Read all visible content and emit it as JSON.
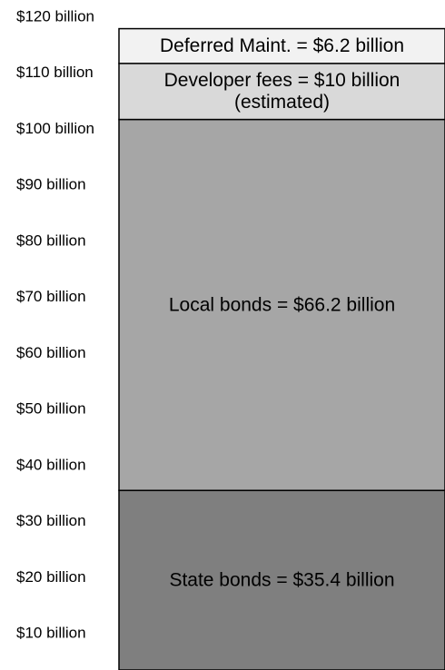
{
  "chart_data": {
    "type": "bar",
    "stacked": true,
    "ylim": [
      0,
      120
    ],
    "grid": false,
    "legend": "none",
    "tick_labels": [
      "$120 billion",
      "$110 billion",
      "$100 billion",
      "$90 billion",
      "$80 billion",
      "$70 billion",
      "$60 billion",
      "$50 billion",
      "$40 billion",
      "$30 billion",
      "$20 billion",
      "$10 billion"
    ],
    "tick_values": [
      120,
      110,
      100,
      90,
      80,
      70,
      60,
      50,
      40,
      30,
      20,
      10
    ],
    "segments": [
      {
        "value": 35.4,
        "lines": [
          "State bonds = $35.4 billion"
        ],
        "color": "#7f7f7f"
      },
      {
        "value": 66.2,
        "lines": [
          "Local bonds = $66.2 billion"
        ],
        "color": "#a6a6a6"
      },
      {
        "value": 10,
        "lines": [
          "Developer fees = $10 billion",
          "(estimated)"
        ],
        "color": "#d9d9d9"
      },
      {
        "value": 6.2,
        "lines": [
          "Deferred Maint. = $6.2 billion"
        ],
        "color": "#f2f2f2"
      }
    ]
  }
}
